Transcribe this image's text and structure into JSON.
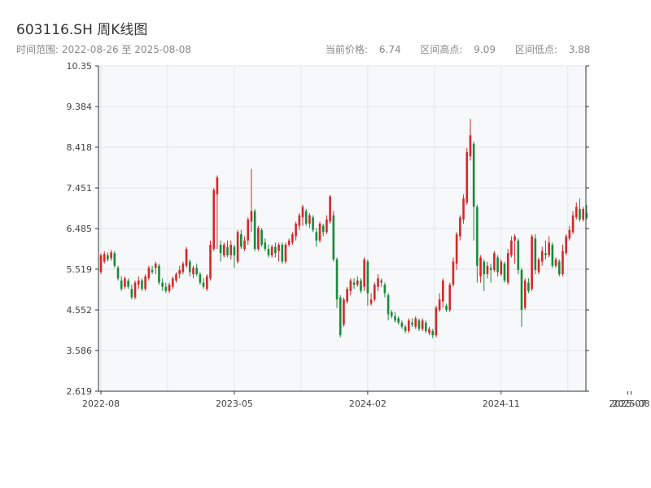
{
  "header": {
    "title": "603116.SH 周K线图",
    "range_label": "时间范围:",
    "range_start": "2022-08-26",
    "range_sep": "至",
    "range_end": "2025-08-08"
  },
  "stats": {
    "current_label": "当前价格:",
    "current_value": "6.74",
    "high_label": "区间高点:",
    "high_value": "9.09",
    "low_label": "区间低点:",
    "low_value": "3.88"
  },
  "colors": {
    "up": "#d62728",
    "down": "#1a8a3a",
    "grid": "#e3e6ea",
    "plot_bg": "#f7f8fa",
    "axis": "#333333"
  },
  "chart_data": {
    "type": "candlestick",
    "ylim": [
      2.619,
      10.35
    ],
    "y_ticks": [
      "2.619",
      "3.586",
      "4.552",
      "5.519",
      "6.485",
      "7.451",
      "8.418",
      "9.384",
      "10.35"
    ],
    "x_ticks": [
      "2022-08",
      "2023-05",
      "2024-02",
      "2024-11",
      "2025-07",
      "2025-08"
    ],
    "x_tick_positions": [
      0,
      39,
      78,
      117,
      154,
      155
    ],
    "candles": [
      [
        5.45,
        5.85,
        5.4,
        5.9
      ],
      [
        5.7,
        5.88,
        5.65,
        5.95
      ],
      [
        5.85,
        5.75,
        5.7,
        5.92
      ],
      [
        5.78,
        5.92,
        5.72,
        5.98
      ],
      [
        5.9,
        5.6,
        5.55,
        5.95
      ],
      [
        5.55,
        5.3,
        5.25,
        5.6
      ],
      [
        5.25,
        5.05,
        5.0,
        5.35
      ],
      [
        5.1,
        5.3,
        5.05,
        5.35
      ],
      [
        5.25,
        5.1,
        5.05,
        5.3
      ],
      [
        5.05,
        4.85,
        4.8,
        5.15
      ],
      [
        4.85,
        5.2,
        4.8,
        5.25
      ],
      [
        5.15,
        5.25,
        5.05,
        5.35
      ],
      [
        5.25,
        5.05,
        5.0,
        5.3
      ],
      [
        5.05,
        5.35,
        5.0,
        5.4
      ],
      [
        5.3,
        5.55,
        5.25,
        5.6
      ],
      [
        5.5,
        5.45,
        5.4,
        5.6
      ],
      [
        5.55,
        5.65,
        5.4,
        5.7
      ],
      [
        5.6,
        5.2,
        5.15,
        5.65
      ],
      [
        5.2,
        5.1,
        5.0,
        5.3
      ],
      [
        5.1,
        5.0,
        4.95,
        5.2
      ],
      [
        5.0,
        5.15,
        4.95,
        5.2
      ],
      [
        5.1,
        5.3,
        5.05,
        5.35
      ],
      [
        5.25,
        5.4,
        5.2,
        5.45
      ],
      [
        5.4,
        5.5,
        5.3,
        5.6
      ],
      [
        5.45,
        5.65,
        5.4,
        5.7
      ],
      [
        5.6,
        6.0,
        5.55,
        6.05
      ],
      [
        5.7,
        5.45,
        5.35,
        5.75
      ],
      [
        5.4,
        5.55,
        5.3,
        5.6
      ],
      [
        5.55,
        5.4,
        5.35,
        5.65
      ],
      [
        5.4,
        5.2,
        5.15,
        5.45
      ],
      [
        5.2,
        5.1,
        5.05,
        5.3
      ],
      [
        5.05,
        5.35,
        5.0,
        5.4
      ],
      [
        5.3,
        6.1,
        5.25,
        6.2
      ],
      [
        6.0,
        7.4,
        5.95,
        7.45
      ],
      [
        7.3,
        7.7,
        6.0,
        7.75
      ],
      [
        6.1,
        5.9,
        5.7,
        6.2
      ],
      [
        5.85,
        6.1,
        5.8,
        6.15
      ],
      [
        6.05,
        5.85,
        5.8,
        6.2
      ],
      [
        5.85,
        6.1,
        5.75,
        6.2
      ],
      [
        6.05,
        5.85,
        5.55,
        6.1
      ],
      [
        5.7,
        6.4,
        5.65,
        6.45
      ],
      [
        6.35,
        6.05,
        6.0,
        6.45
      ],
      [
        6.0,
        6.2,
        5.95,
        6.3
      ],
      [
        6.2,
        6.7,
        6.1,
        6.75
      ],
      [
        6.65,
        6.9,
        6.4,
        7.9
      ],
      [
        6.9,
        6.0,
        5.95,
        6.95
      ],
      [
        6.0,
        6.5,
        5.95,
        6.55
      ],
      [
        6.45,
        6.1,
        6.05,
        6.5
      ],
      [
        6.15,
        6.0,
        5.95,
        6.25
      ],
      [
        6.0,
        5.85,
        5.8,
        6.1
      ],
      [
        5.85,
        6.05,
        5.8,
        6.1
      ],
      [
        6.05,
        5.9,
        5.8,
        6.15
      ],
      [
        5.95,
        6.1,
        5.7,
        6.15
      ],
      [
        6.1,
        5.7,
        5.65,
        6.15
      ],
      [
        5.7,
        6.1,
        5.65,
        6.15
      ],
      [
        6.1,
        6.2,
        6.05,
        6.25
      ],
      [
        6.15,
        6.35,
        6.1,
        6.4
      ],
      [
        6.3,
        6.6,
        6.2,
        6.65
      ],
      [
        6.55,
        6.8,
        6.45,
        6.85
      ],
      [
        6.75,
        7.0,
        6.55,
        7.05
      ],
      [
        6.9,
        6.6,
        6.55,
        6.95
      ],
      [
        6.6,
        6.8,
        6.5,
        6.85
      ],
      [
        6.75,
        6.45,
        6.4,
        6.8
      ],
      [
        6.4,
        6.2,
        6.05,
        6.5
      ],
      [
        6.2,
        6.6,
        6.15,
        6.65
      ],
      [
        6.55,
        6.4,
        6.3,
        6.6
      ],
      [
        6.4,
        6.7,
        6.35,
        6.8
      ],
      [
        6.65,
        7.25,
        6.6,
        7.28
      ],
      [
        6.8,
        5.75,
        5.7,
        6.9
      ],
      [
        5.75,
        4.8,
        4.6,
        5.8
      ],
      [
        4.85,
        3.95,
        3.9,
        4.9
      ],
      [
        4.2,
        4.8,
        4.15,
        4.85
      ],
      [
        4.75,
        5.05,
        4.7,
        5.1
      ],
      [
        5.0,
        5.25,
        4.9,
        5.3
      ],
      [
        5.2,
        5.15,
        5.05,
        5.3
      ],
      [
        5.15,
        5.25,
        5.1,
        5.35
      ],
      [
        5.25,
        5.0,
        4.95,
        5.3
      ],
      [
        5.1,
        5.75,
        5.0,
        5.8
      ],
      [
        5.7,
        4.95,
        4.65,
        5.75
      ],
      [
        4.7,
        4.8,
        4.65,
        4.95
      ],
      [
        4.8,
        5.15,
        4.75,
        5.2
      ],
      [
        5.1,
        5.3,
        5.0,
        5.4
      ],
      [
        5.25,
        5.2,
        5.1,
        5.3
      ],
      [
        5.15,
        4.95,
        4.85,
        5.2
      ],
      [
        4.9,
        4.45,
        4.3,
        4.95
      ],
      [
        4.5,
        4.4,
        4.35,
        4.55
      ],
      [
        4.4,
        4.3,
        4.25,
        4.5
      ],
      [
        4.35,
        4.25,
        4.2,
        4.4
      ],
      [
        4.25,
        4.15,
        4.1,
        4.3
      ],
      [
        4.15,
        4.05,
        4.0,
        4.2
      ],
      [
        4.05,
        4.3,
        4.0,
        4.35
      ],
      [
        4.25,
        4.2,
        4.15,
        4.35
      ],
      [
        4.15,
        4.35,
        4.1,
        4.4
      ],
      [
        4.3,
        4.1,
        4.05,
        4.35
      ],
      [
        4.1,
        4.3,
        4.05,
        4.35
      ],
      [
        4.25,
        4.05,
        4.0,
        4.3
      ],
      [
        4.0,
        4.1,
        3.95,
        4.15
      ],
      [
        4.05,
        3.95,
        3.88,
        4.1
      ],
      [
        3.95,
        4.6,
        3.9,
        4.65
      ],
      [
        4.55,
        4.8,
        4.5,
        4.95
      ],
      [
        4.75,
        5.25,
        4.6,
        5.3
      ],
      [
        4.65,
        4.55,
        4.5,
        4.7
      ],
      [
        4.55,
        5.15,
        4.5,
        5.2
      ],
      [
        5.15,
        5.7,
        5.1,
        5.8
      ],
      [
        5.65,
        6.35,
        5.5,
        6.4
      ],
      [
        6.3,
        6.75,
        6.2,
        6.8
      ],
      [
        6.7,
        7.2,
        6.6,
        7.3
      ],
      [
        7.1,
        8.3,
        7.05,
        8.4
      ],
      [
        8.2,
        8.7,
        8.1,
        9.09
      ],
      [
        8.5,
        7.0,
        6.2,
        8.55
      ],
      [
        7.0,
        5.6,
        5.2,
        7.05
      ],
      [
        5.35,
        5.8,
        5.2,
        5.85
      ],
      [
        5.7,
        5.4,
        5.0,
        5.75
      ],
      [
        5.4,
        5.6,
        5.3,
        5.7
      ],
      [
        5.55,
        5.5,
        5.2,
        5.65
      ],
      [
        5.5,
        5.9,
        5.45,
        5.95
      ],
      [
        5.8,
        5.45,
        5.35,
        5.85
      ],
      [
        5.4,
        5.7,
        5.35,
        5.75
      ],
      [
        5.65,
        5.25,
        5.2,
        5.7
      ],
      [
        5.2,
        5.9,
        5.15,
        6.0
      ],
      [
        5.85,
        6.2,
        5.8,
        6.3
      ],
      [
        6.2,
        6.3,
        5.65,
        6.35
      ],
      [
        6.2,
        5.5,
        5.4,
        6.25
      ],
      [
        5.5,
        4.55,
        4.15,
        5.55
      ],
      [
        4.6,
        5.25,
        4.55,
        5.3
      ],
      [
        5.2,
        5.0,
        4.95,
        5.3
      ],
      [
        5.05,
        6.3,
        5.0,
        6.35
      ],
      [
        6.25,
        5.5,
        5.4,
        6.35
      ],
      [
        5.45,
        5.75,
        5.4,
        5.8
      ],
      [
        5.7,
        5.95,
        5.6,
        6.05
      ],
      [
        5.9,
        5.85,
        5.75,
        6.2
      ],
      [
        5.85,
        6.15,
        5.8,
        6.3
      ],
      [
        6.1,
        5.6,
        5.55,
        6.15
      ],
      [
        5.6,
        5.75,
        5.55,
        5.8
      ],
      [
        5.7,
        5.4,
        5.35,
        5.75
      ],
      [
        5.4,
        5.95,
        5.35,
        6.1
      ],
      [
        5.9,
        6.3,
        5.85,
        6.35
      ],
      [
        6.25,
        6.45,
        6.2,
        6.55
      ],
      [
        6.4,
        6.8,
        6.35,
        6.9
      ],
      [
        6.75,
        7.0,
        6.7,
        7.1
      ],
      [
        6.95,
        6.7,
        6.65,
        7.2
      ],
      [
        6.7,
        6.95,
        6.65,
        7.0
      ],
      [
        6.85,
        6.74,
        6.7,
        7.05
      ]
    ]
  }
}
